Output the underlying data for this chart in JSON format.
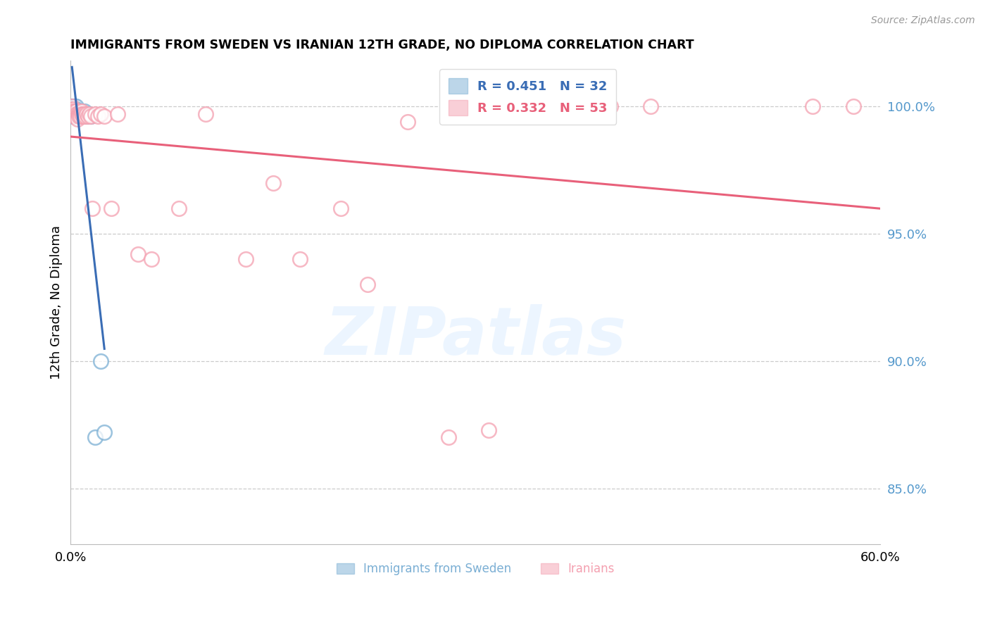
{
  "title": "IMMIGRANTS FROM SWEDEN VS IRANIAN 12TH GRADE, NO DIPLOMA CORRELATION CHART",
  "source": "Source: ZipAtlas.com",
  "ylabel": "12th Grade, No Diploma",
  "xlabel_label1": "Immigrants from Sweden",
  "xlabel_label2": "Iranians",
  "x_min": 0.0,
  "x_max": 0.6,
  "y_min": 0.828,
  "y_max": 1.018,
  "yticks": [
    0.85,
    0.9,
    0.95,
    1.0
  ],
  "ytick_labels": [
    "85.0%",
    "90.0%",
    "95.0%",
    "100.0%"
  ],
  "xticks": [
    0.0,
    0.1,
    0.2,
    0.3,
    0.4,
    0.5,
    0.6
  ],
  "xtick_labels": [
    "0.0%",
    "",
    "",
    "",
    "",
    "",
    "60.0%"
  ],
  "legend_R1": "R = 0.451",
  "legend_N1": "N = 32",
  "legend_R2": "R = 0.332",
  "legend_N2": "N = 53",
  "blue_color": "#7BAFD4",
  "pink_color": "#F4A0B0",
  "blue_line_color": "#3A6DB5",
  "pink_line_color": "#E8607A",
  "watermark_text": "ZIPatlas",
  "sweden_x": [
    0.001,
    0.001,
    0.002,
    0.002,
    0.002,
    0.003,
    0.003,
    0.003,
    0.004,
    0.004,
    0.004,
    0.005,
    0.005,
    0.005,
    0.006,
    0.006,
    0.006,
    0.007,
    0.007,
    0.008,
    0.008,
    0.009,
    0.01,
    0.011,
    0.012,
    0.013,
    0.015,
    0.018,
    0.022,
    0.025,
    0.001,
    0.002
  ],
  "sweden_y": [
    1.0,
    1.0,
    1.0,
    1.0,
    0.999,
    1.0,
    0.999,
    0.998,
    1.0,
    0.999,
    0.997,
    0.998,
    0.998,
    0.997,
    0.998,
    0.997,
    0.996,
    0.998,
    0.996,
    0.997,
    0.996,
    0.997,
    0.998,
    0.997,
    0.996,
    0.997,
    0.996,
    0.87,
    0.9,
    0.872,
    0.998,
    0.996
  ],
  "iranian_x": [
    0.001,
    0.001,
    0.001,
    0.002,
    0.002,
    0.003,
    0.003,
    0.003,
    0.004,
    0.004,
    0.005,
    0.005,
    0.005,
    0.006,
    0.006,
    0.007,
    0.007,
    0.007,
    0.008,
    0.008,
    0.009,
    0.009,
    0.01,
    0.011,
    0.012,
    0.013,
    0.014,
    0.015,
    0.016,
    0.018,
    0.02,
    0.022,
    0.025,
    0.03,
    0.035,
    0.05,
    0.06,
    0.08,
    0.1,
    0.13,
    0.15,
    0.17,
    0.2,
    0.22,
    0.25,
    0.28,
    0.31,
    0.34,
    0.37,
    0.4,
    0.43,
    0.55,
    0.58
  ],
  "iranian_y": [
    1.0,
    0.999,
    0.998,
    0.999,
    0.998,
    0.998,
    0.997,
    0.996,
    0.998,
    0.997,
    0.997,
    0.996,
    0.995,
    0.997,
    0.996,
    0.998,
    0.997,
    0.996,
    0.998,
    0.997,
    0.997,
    0.996,
    0.997,
    0.996,
    0.997,
    0.996,
    0.997,
    0.996,
    0.96,
    0.997,
    0.996,
    0.997,
    0.996,
    0.96,
    0.997,
    0.942,
    0.94,
    0.96,
    0.997,
    0.94,
    0.97,
    0.94,
    0.96,
    0.93,
    0.994,
    0.87,
    0.873,
    0.997,
    0.998,
    1.0,
    1.0,
    1.0,
    1.0
  ]
}
